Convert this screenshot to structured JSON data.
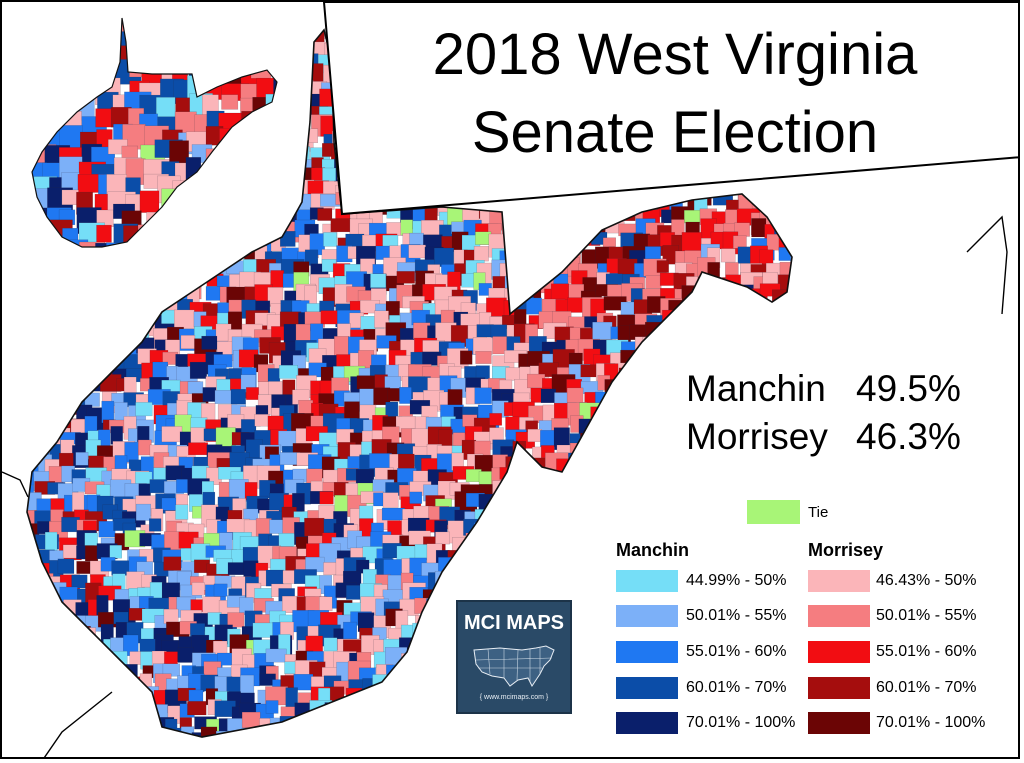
{
  "title": {
    "line1": "2018 West Virginia",
    "line2": "Senate Election"
  },
  "results": [
    {
      "candidate": "Manchin",
      "percent": "49.5%"
    },
    {
      "candidate": "Morrisey",
      "percent": "46.3%"
    }
  ],
  "legend": {
    "tie": {
      "label": "Tie",
      "color": "#a8f577"
    },
    "manchin": {
      "heading": "Manchin",
      "bins": [
        {
          "label": "44.99% - 50%",
          "color": "#75def7"
        },
        {
          "label": "50.01% - 55%",
          "color": "#7cb0f8"
        },
        {
          "label": "55.01% - 60%",
          "color": "#1f78f2"
        },
        {
          "label": "60.01% - 70%",
          "color": "#0b4da8"
        },
        {
          "label": "70.01% - 100%",
          "color": "#0a1f6b"
        }
      ]
    },
    "morrisey": {
      "heading": "Morrisey",
      "bins": [
        {
          "label": "46.43% - 50%",
          "color": "#fbb5b9"
        },
        {
          "label": "50.01% - 55%",
          "color": "#f57d80"
        },
        {
          "label": "55.01% - 60%",
          "color": "#f20d12"
        },
        {
          "label": "60.01% - 70%",
          "color": "#a50d0d"
        },
        {
          "label": "70.01% - 100%",
          "color": "#6b0505"
        }
      ]
    }
  },
  "logo": {
    "title": "MCI MAPS",
    "url": "{ www.mcimaps.com }"
  }
}
